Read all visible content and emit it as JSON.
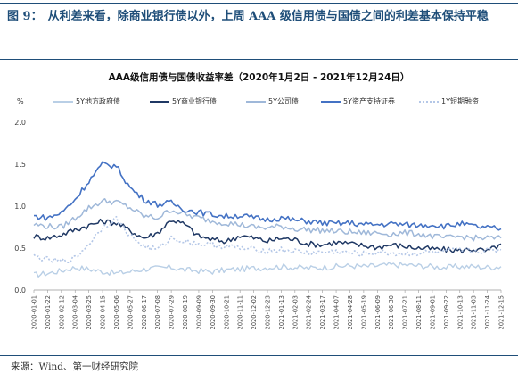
{
  "figure": {
    "label": "图 9：",
    "title": "从利差来看，除商业银行债以外，上周 AAA 级信用债与国债之间的利差基本保持平稳"
  },
  "source": "来源：Wind、第一财经研究院",
  "chart_data": {
    "type": "line",
    "title": "AAA级信用债与国债收益率差（2020年1月2日 - 2021年12月24日）",
    "ylabel": "%",
    "ylim": [
      0.0,
      2.0
    ],
    "yticks": [
      "0.0",
      "0.5",
      "1.0",
      "1.5",
      "2.0"
    ],
    "grid": false,
    "legend_position": "top",
    "x": [
      "2020-01-01",
      "2020-01-22",
      "2020-02-12",
      "2020-03-04",
      "2020-03-25",
      "2020-04-15",
      "2020-05-06",
      "2020-05-27",
      "2020-06-17",
      "2020-07-08",
      "2020-07-29",
      "2020-08-19",
      "2020-09-09",
      "2020-09-30",
      "2020-10-21",
      "2020-11-11",
      "2020-12-02",
      "2020-12-23",
      "2021-01-13",
      "2021-02-03",
      "2021-02-24",
      "2021-03-17",
      "2021-04-07",
      "2021-04-28",
      "2021-05-19",
      "2021-06-09",
      "2021-06-30",
      "2021-07-21",
      "2021-08-11",
      "2021-09-01",
      "2021-09-22",
      "2021-10-13",
      "2021-11-03",
      "2021-11-24",
      "2021-12-15"
    ],
    "series": [
      {
        "name": "5Y地方政府债",
        "color": "#b9cfe6",
        "dash": "",
        "width": 1.4,
        "values": [
          0.18,
          0.2,
          0.23,
          0.27,
          0.25,
          0.22,
          0.2,
          0.22,
          0.25,
          0.26,
          0.27,
          0.24,
          0.23,
          0.22,
          0.24,
          0.25,
          0.26,
          0.27,
          0.28,
          0.27,
          0.26,
          0.27,
          0.28,
          0.29,
          0.28,
          0.29,
          0.3,
          0.3,
          0.29,
          0.28,
          0.27,
          0.28,
          0.28,
          0.27,
          0.28
        ]
      },
      {
        "name": "5Y商业银行债",
        "color": "#1f3864",
        "dash": "",
        "width": 1.5,
        "values": [
          0.64,
          0.62,
          0.66,
          0.72,
          0.77,
          0.82,
          0.8,
          0.71,
          0.62,
          0.68,
          0.84,
          0.78,
          0.64,
          0.6,
          0.58,
          0.65,
          0.62,
          0.58,
          0.62,
          0.6,
          0.55,
          0.54,
          0.57,
          0.55,
          0.53,
          0.51,
          0.54,
          0.52,
          0.5,
          0.49,
          0.48,
          0.47,
          0.49,
          0.46,
          0.55
        ]
      },
      {
        "name": "5Y公司债",
        "color": "#9fb8d9",
        "dash": "",
        "width": 1.5,
        "values": [
          0.78,
          0.76,
          0.75,
          0.86,
          0.98,
          1.06,
          1.05,
          0.98,
          0.88,
          0.86,
          0.96,
          0.9,
          0.86,
          0.82,
          0.8,
          0.78,
          0.75,
          0.74,
          0.76,
          0.73,
          0.72,
          0.71,
          0.7,
          0.69,
          0.68,
          0.68,
          0.67,
          0.68,
          0.67,
          0.64,
          0.62,
          0.64,
          0.62,
          0.62,
          0.62
        ]
      },
      {
        "name": "5Y资产支持证券",
        "color": "#4472c4",
        "dash": "",
        "width": 1.6,
        "values": [
          0.88,
          0.86,
          0.92,
          1.08,
          1.3,
          1.5,
          1.48,
          1.22,
          1.08,
          1.02,
          1.04,
          0.96,
          0.93,
          0.9,
          0.88,
          0.89,
          0.86,
          0.84,
          0.86,
          0.83,
          0.82,
          0.8,
          0.79,
          0.8,
          0.78,
          0.78,
          0.79,
          0.78,
          0.77,
          0.78,
          0.76,
          0.79,
          0.76,
          0.74,
          0.73
        ]
      },
      {
        "name": "1Y短期融资",
        "color": "#b4c7e7",
        "dash": "2,2",
        "width": 1.6,
        "values": [
          0.4,
          0.36,
          0.34,
          0.38,
          0.55,
          0.75,
          0.85,
          0.65,
          0.52,
          0.48,
          0.62,
          0.58,
          0.55,
          0.54,
          0.52,
          0.5,
          0.48,
          0.47,
          0.48,
          0.46,
          0.44,
          0.45,
          0.46,
          0.44,
          0.43,
          0.45,
          0.44,
          0.43,
          0.44,
          0.45,
          0.46,
          0.47,
          0.46,
          0.47,
          0.48
        ]
      }
    ]
  }
}
